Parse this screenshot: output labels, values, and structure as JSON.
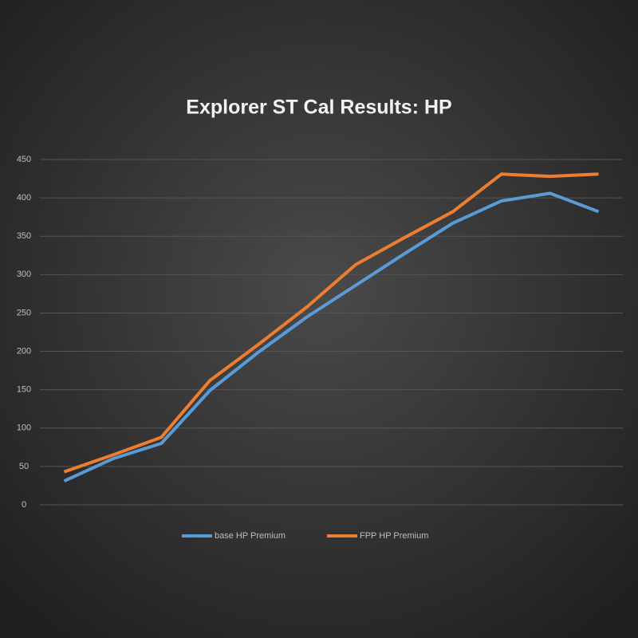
{
  "chart_data": {
    "type": "line",
    "title": "Explorer ST Cal Results: HP",
    "categories": [
      null,
      null,
      null,
      null,
      null,
      null,
      null,
      null,
      null,
      null,
      null,
      null
    ],
    "series": [
      {
        "name": "base HP Premium",
        "color": "#5b9bd5",
        "values": [
          31,
          60,
          80,
          149,
          199,
          245,
          286,
          327,
          367,
          396,
          406,
          382
        ]
      },
      {
        "name": "FPP HP Premium",
        "color": "#ed7d31",
        "values": [
          43,
          65,
          88,
          162,
          209,
          258,
          313,
          348,
          382,
          431,
          428,
          431
        ]
      }
    ],
    "ylim": [
      0,
      450
    ],
    "yticks": [
      0,
      50,
      100,
      150,
      200,
      250,
      300,
      350,
      400,
      450
    ],
    "grid": true,
    "legend": "bottom"
  }
}
